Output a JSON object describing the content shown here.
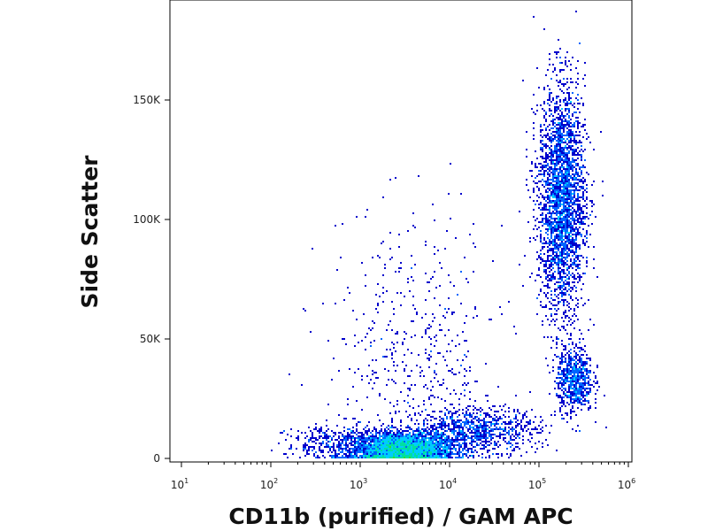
{
  "chart_data": {
    "type": "scatter",
    "subtype": "flow-cytometry density dot plot",
    "title": "",
    "xlabel": "CD11b (purified) / GAM APC",
    "ylabel": "Side Scatter",
    "x_scale": "log",
    "xlim": [
      10,
      1000000
    ],
    "ylim": [
      0,
      190000
    ],
    "x_ticks": [
      {
        "base": "10",
        "exp": "1",
        "value": 10
      },
      {
        "base": "10",
        "exp": "2",
        "value": 100
      },
      {
        "base": "10",
        "exp": "3",
        "value": 1000
      },
      {
        "base": "10",
        "exp": "4",
        "value": 10000
      },
      {
        "base": "10",
        "exp": "5",
        "value": 100000
      },
      {
        "base": "10",
        "exp": "6",
        "value": 1000000
      }
    ],
    "y_ticks": [
      {
        "label": "0",
        "value": 0
      },
      {
        "label": "50K",
        "value": 50000
      },
      {
        "label": "100K",
        "value": 100000
      },
      {
        "label": "150K",
        "value": 150000
      }
    ],
    "color_scale": [
      "#0000cc",
      "#0066ff",
      "#00ccff",
      "#00e0a0",
      "#33dd33",
      "#ffff00",
      "#ff8800",
      "#dd0000"
    ],
    "populations": [
      {
        "x_center": 3000,
        "y_center": 4000,
        "x_spread_decades": 0.28,
        "y_spread": 3500,
        "weight": 0.4
      },
      {
        "x_center": 20000,
        "y_center": 12000,
        "x_spread_decades": 0.35,
        "y_spread": 4500,
        "weight": 0.1
      },
      {
        "x_center": 180000,
        "y_center": 108000,
        "x_spread_decades": 0.13,
        "y_spread": 24000,
        "weight": 0.32
      },
      {
        "x_center": 250000,
        "y_center": 33000,
        "x_spread_decades": 0.1,
        "y_spread": 7000,
        "weight": 0.08
      },
      {
        "x_center": 4000,
        "y_center": 40000,
        "x_spread_decades": 0.5,
        "y_spread": 30000,
        "weight": 0.06
      },
      {
        "x_center": 600,
        "y_center": 6000,
        "x_spread_decades": 0.3,
        "y_spread": 4000,
        "weight": 0.04
      }
    ]
  }
}
